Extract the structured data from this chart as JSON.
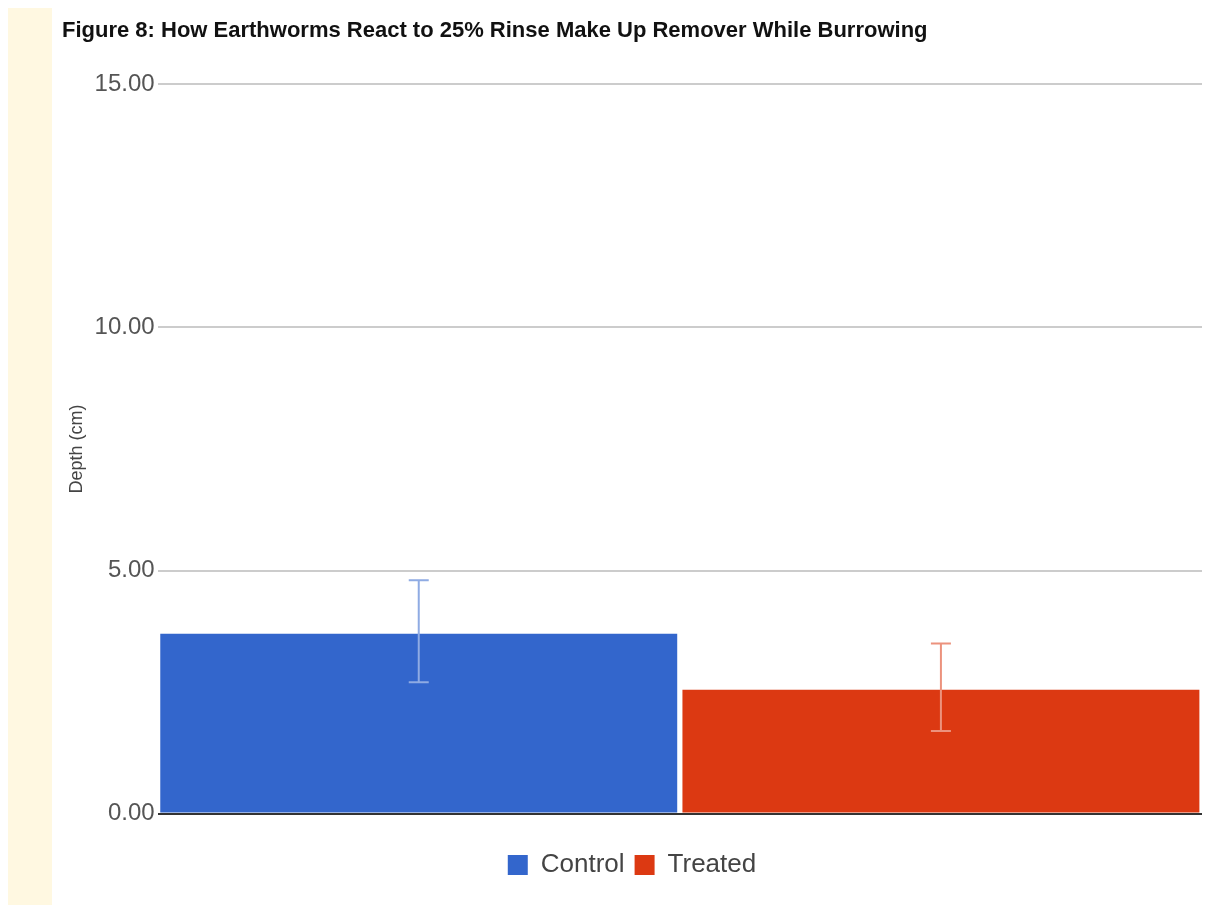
{
  "chart_data": {
    "type": "bar",
    "title": "Figure 8: How Earthworms React to 25% Rinse Make Up Remover While Burrowing",
    "ylabel": "Depth (cm)",
    "categories": [
      null
    ],
    "series": [
      {
        "name": "Control",
        "color": "#3366cc",
        "values": [
          3.7
        ],
        "errors": [
          [
            2.7,
            4.8
          ]
        ]
      },
      {
        "name": "Treated",
        "color": "#dc3912",
        "values": [
          2.55
        ],
        "errors": [
          [
            1.7,
            3.5
          ]
        ]
      }
    ],
    "ylim": [
      0,
      15
    ],
    "yticks": [
      {
        "value": 0,
        "label": "0.00"
      },
      {
        "value": 5,
        "label": "5.00"
      },
      {
        "value": 10,
        "label": "10.00"
      },
      {
        "value": 15,
        "label": "15.00"
      }
    ],
    "grid": "y",
    "legend": "bottom"
  }
}
